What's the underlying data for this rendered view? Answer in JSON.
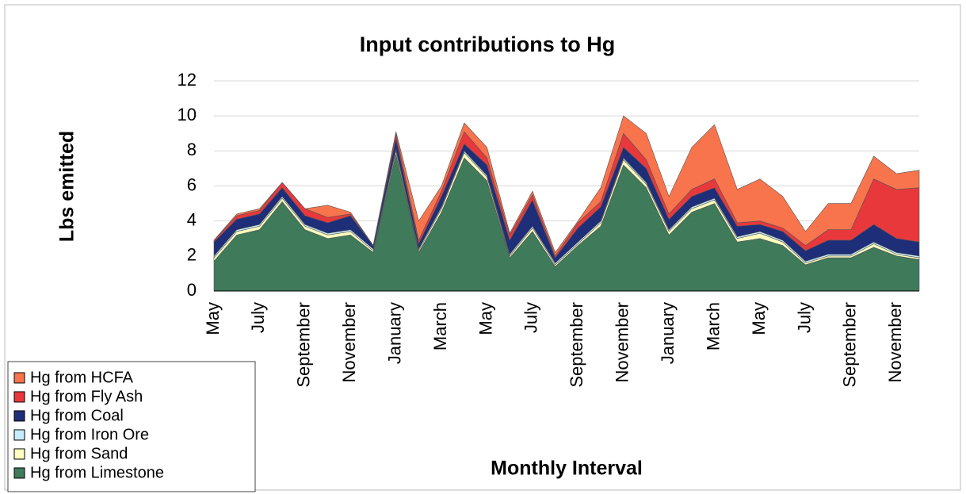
{
  "chart_data": {
    "type": "stacked_area",
    "title": "Input contributions to Hg",
    "ylabel": "Lbs emitted",
    "xlabel": "Monthly Interval",
    "categories": [
      "May",
      null,
      "July",
      null,
      "September",
      null,
      "November",
      null,
      "January",
      null,
      "March",
      null,
      "May",
      null,
      "July",
      null,
      "September",
      null,
      "November",
      null,
      "January",
      null,
      "March",
      null,
      "May",
      null,
      "July",
      null,
      "September",
      null,
      "November",
      null
    ],
    "ylim": [
      0,
      12
    ],
    "yticks": [
      0,
      2,
      4,
      6,
      8,
      10,
      12
    ],
    "grid": true,
    "legend": "lower left",
    "series": [
      {
        "name": "Hg from Limestone",
        "color": "#3f7a5a",
        "values": [
          1.7,
          3.2,
          3.5,
          5.1,
          3.5,
          3.0,
          3.2,
          2.2,
          7.8,
          2.2,
          4.5,
          7.6,
          6.3,
          1.9,
          3.4,
          1.4,
          2.6,
          3.7,
          7.2,
          5.9,
          3.2,
          4.5,
          5.0,
          2.8,
          3.0,
          2.6,
          1.5,
          1.9,
          1.9,
          2.5,
          2.0,
          1.8
        ]
      },
      {
        "name": "Hg from Sand",
        "color": "#ffffc0",
        "values": [
          0.2,
          0.2,
          0.2,
          0.2,
          0.2,
          0.2,
          0.2,
          0.1,
          0.2,
          0.1,
          0.2,
          0.3,
          0.2,
          0.1,
          0.2,
          0.1,
          0.1,
          0.2,
          0.3,
          0.2,
          0.2,
          0.2,
          0.2,
          0.2,
          0.3,
          0.2,
          0.1,
          0.1,
          0.1,
          0.2,
          0.1,
          0.1
        ]
      },
      {
        "name": "Hg from Iron Ore",
        "color": "#c8ecfa",
        "values": [
          0.1,
          0.1,
          0.1,
          0.1,
          0.1,
          0.1,
          0.1,
          0.1,
          0.1,
          0.1,
          0.1,
          0.1,
          0.1,
          0.1,
          0.1,
          0.1,
          0.1,
          0.1,
          0.1,
          0.1,
          0.1,
          0.1,
          0.1,
          0.1,
          0.1,
          0.1,
          0.1,
          0.1,
          0.1,
          0.1,
          0.1,
          0.1
        ]
      },
      {
        "name": "Hg from Coal",
        "color": "#1e2e78",
        "values": [
          0.8,
          0.6,
          0.6,
          0.5,
          0.5,
          0.6,
          0.8,
          0.2,
          0.6,
          0.3,
          0.6,
          0.4,
          0.6,
          0.8,
          1.5,
          0.3,
          0.8,
          0.8,
          0.6,
          0.8,
          0.6,
          0.6,
          0.6,
          0.6,
          0.4,
          0.5,
          0.6,
          0.8,
          0.8,
          1.0,
          0.8,
          0.8
        ]
      },
      {
        "name": "Hg from Fly Ash",
        "color": "#e8383c",
        "values": [
          0.1,
          0.2,
          0.2,
          0.3,
          0.4,
          0.3,
          0.1,
          0.0,
          0.3,
          0.2,
          0.3,
          0.7,
          0.4,
          0.3,
          0.3,
          0.1,
          0.3,
          0.3,
          0.8,
          0.5,
          0.3,
          0.4,
          0.5,
          0.2,
          0.2,
          0.2,
          0.3,
          0.6,
          0.6,
          2.6,
          2.8,
          3.1
        ]
      },
      {
        "name": "Hg from HCFA",
        "color": "#f8744c",
        "values": [
          0.0,
          0.1,
          0.1,
          0.0,
          0.0,
          0.7,
          0.1,
          0.0,
          0.1,
          1.1,
          0.3,
          0.5,
          0.6,
          0.1,
          0.2,
          0.2,
          0.1,
          0.8,
          1.0,
          1.5,
          1.0,
          2.4,
          3.1,
          1.9,
          2.4,
          1.8,
          0.8,
          1.5,
          1.5,
          1.3,
          0.9,
          1.0
        ]
      }
    ]
  }
}
